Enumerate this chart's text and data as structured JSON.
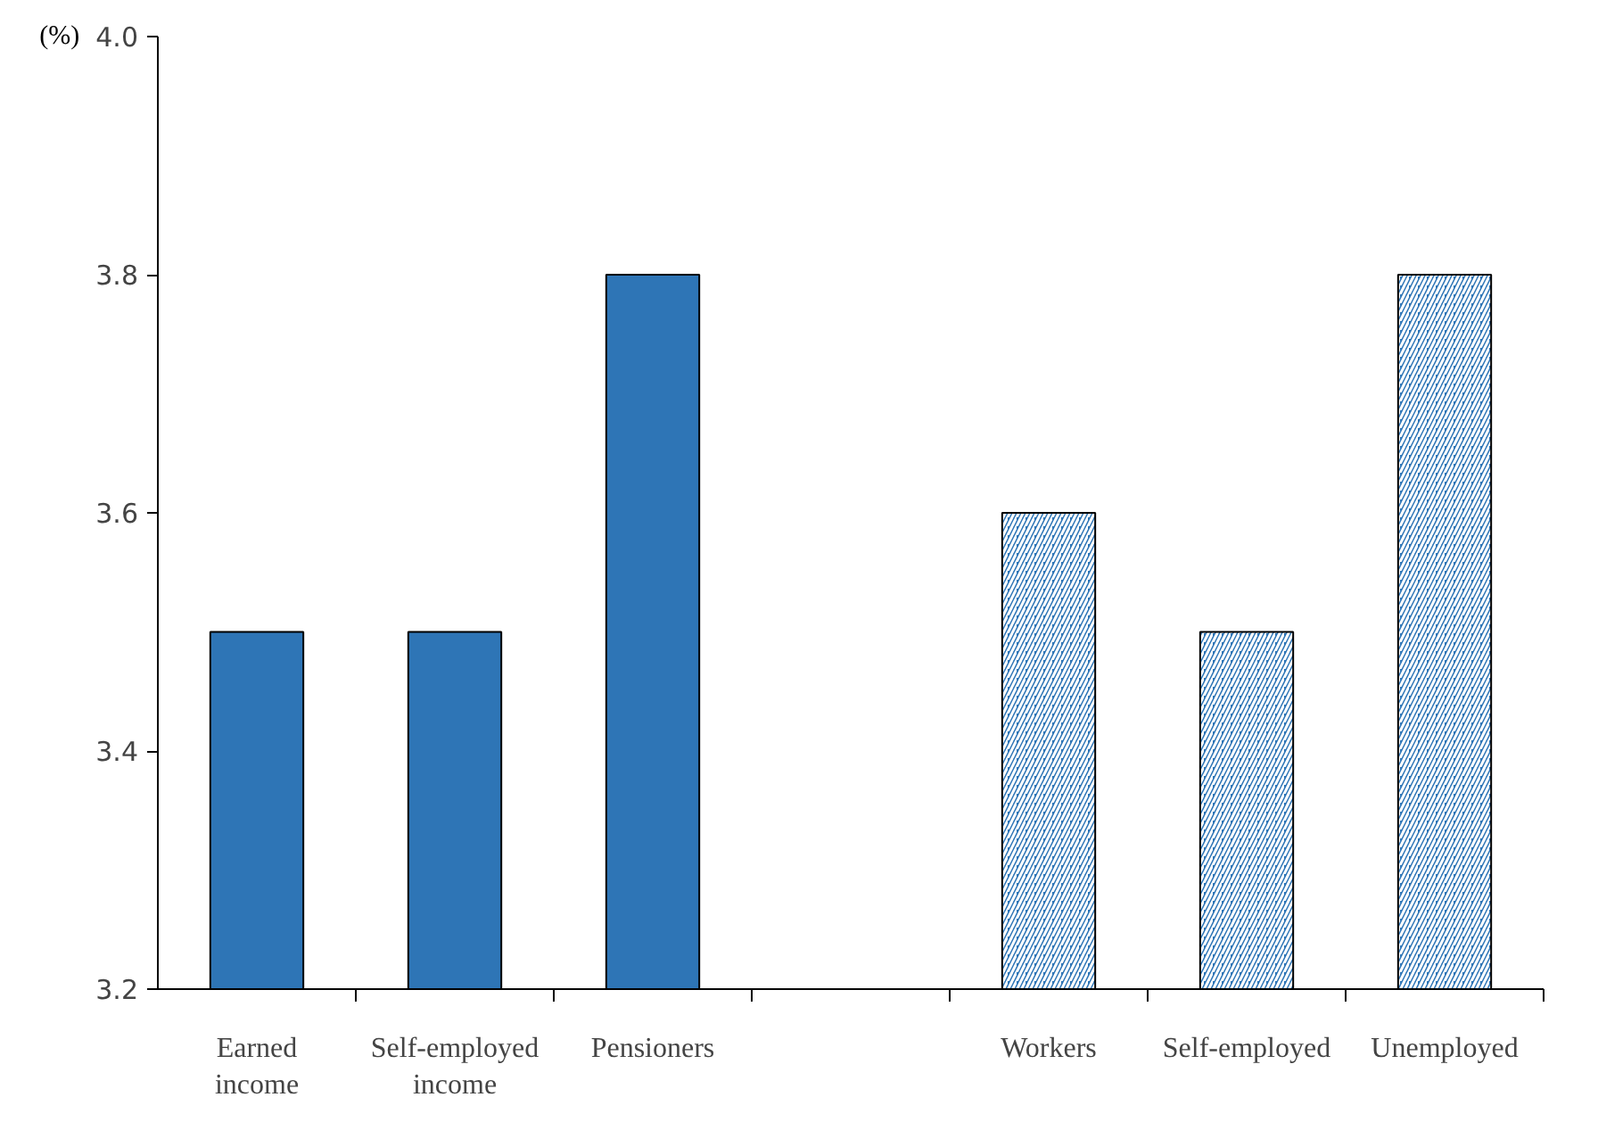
{
  "chart_data": {
    "type": "bar",
    "ylabel": "(%)",
    "categories": [
      "Earned\nincome",
      "Self-employed\nincome",
      "Pensioners",
      null,
      "Workers",
      "Self-employed",
      "Unemployed"
    ],
    "series": [
      {
        "color": "#2e75b6",
        "values": [
          3.5,
          3.5,
          3.8,
          null,
          null,
          null,
          null
        ]
      },
      {
        "color": "#2e75b6",
        "values": [
          null,
          null,
          null,
          null,
          3.6,
          3.5,
          3.8
        ]
      }
    ],
    "ylim": [
      3.2,
      4.0
    ],
    "yticks": [
      {
        "value": 3.2,
        "label": "3.2"
      },
      {
        "value": 3.4,
        "label": "3.4"
      },
      {
        "value": 3.6,
        "label": "3.6"
      },
      {
        "value": 3.8,
        "label": "3.8"
      },
      {
        "value": 4.0,
        "label": "4.0"
      }
    ],
    "grid": false
  }
}
